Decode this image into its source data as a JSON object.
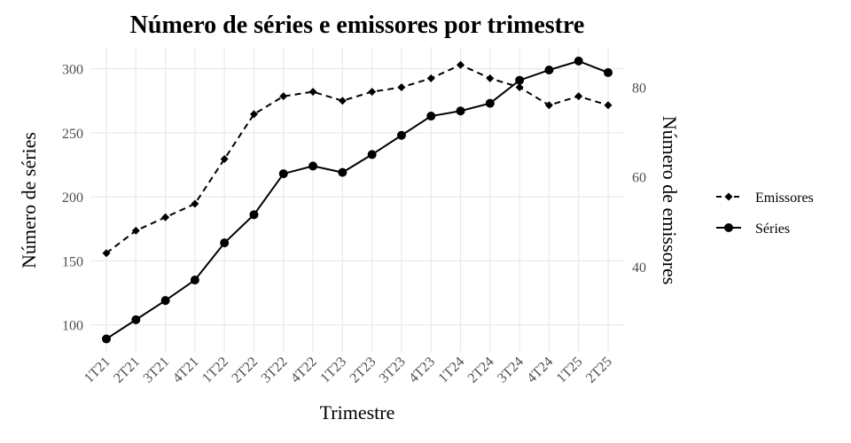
{
  "chart_data": {
    "type": "line",
    "title": "Número de séries e emissores por trimestre",
    "xlabel": "Trimestre",
    "ylabel": "Número de séries",
    "y2label": "Número de emissores",
    "categories": [
      "1T21",
      "2T21",
      "3T21",
      "4T21",
      "1T22",
      "2T22",
      "3T22",
      "4T22",
      "1T23",
      "2T23",
      "3T23",
      "4T23",
      "1T24",
      "2T24",
      "3T24",
      "4T24",
      "1T25",
      "2T25"
    ],
    "ylim": [
      79,
      317
    ],
    "yticks": [
      100,
      150,
      200,
      250,
      300
    ],
    "y2lim": [
      21,
      89
    ],
    "y2ticks": [
      40,
      60,
      80
    ],
    "grid": true,
    "legend_position": "right",
    "series": [
      {
        "name": "Emissores",
        "axis": "right",
        "marker": "diamond",
        "line": "dashed",
        "values": [
          43,
          48,
          51,
          54,
          64,
          74,
          78,
          79,
          77,
          79,
          80,
          82,
          85,
          82,
          80,
          76,
          78,
          76
        ]
      },
      {
        "name": "Séries",
        "axis": "left",
        "marker": "circle",
        "line": "solid",
        "values": [
          89,
          104,
          119,
          135,
          164,
          186,
          218,
          224,
          219,
          233,
          248,
          263,
          267,
          273,
          291,
          299,
          306,
          297
        ]
      }
    ]
  }
}
